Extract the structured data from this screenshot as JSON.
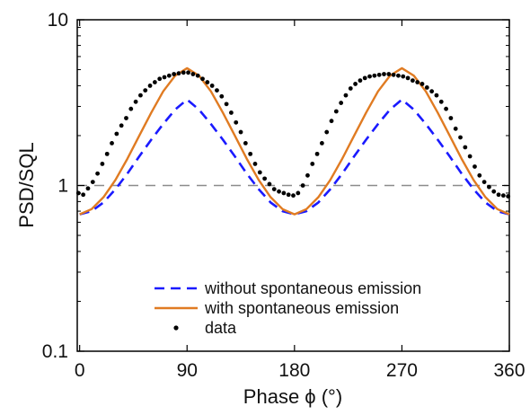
{
  "chart_data": {
    "type": "line",
    "xlabel": "Phase ϕ (°)",
    "ylabel": "PSD/SQL",
    "xlim": [
      -2,
      360
    ],
    "ylim": [
      0.1,
      10
    ],
    "yscale": "log",
    "xticks": [
      0,
      90,
      180,
      270,
      360
    ],
    "yticks": [
      0.1,
      1,
      10
    ],
    "ytick_labels": [
      "0.1",
      "1",
      "10"
    ],
    "grid": false,
    "reference_line": {
      "y": 1,
      "style": "dashed",
      "color": "#8c8c8c"
    },
    "legend": {
      "placement": "bottom-right",
      "entries": [
        {
          "label": "without spontaneous emission",
          "series_index": 0
        },
        {
          "label": "with spontaneous emission",
          "series_index": 1
        },
        {
          "label": "data",
          "series_index": 2
        }
      ]
    },
    "series": [
      {
        "name": "without spontaneous emission",
        "style": "dashed",
        "color": "#1a1aff",
        "x": [
          0,
          10,
          20,
          30,
          40,
          50,
          60,
          70,
          80,
          90,
          100,
          110,
          120,
          130,
          140,
          150,
          160,
          170,
          180,
          190,
          200,
          210,
          220,
          230,
          240,
          250,
          260,
          270,
          280,
          290,
          300,
          310,
          320,
          330,
          340,
          350,
          360
        ],
        "values": [
          0.67,
          0.7,
          0.79,
          0.95,
          1.18,
          1.5,
          1.89,
          2.35,
          2.87,
          3.3,
          2.87,
          2.35,
          1.89,
          1.5,
          1.18,
          0.95,
          0.79,
          0.7,
          0.67,
          0.7,
          0.79,
          0.95,
          1.18,
          1.5,
          1.89,
          2.35,
          2.87,
          3.3,
          2.87,
          2.35,
          1.89,
          1.5,
          1.18,
          0.95,
          0.79,
          0.7,
          0.67
        ]
      },
      {
        "name": "with spontaneous emission",
        "style": "solid",
        "color": "#e07b22",
        "x": [
          0,
          10,
          20,
          30,
          40,
          50,
          60,
          70,
          80,
          90,
          100,
          110,
          120,
          130,
          140,
          150,
          160,
          170,
          180,
          190,
          200,
          210,
          220,
          230,
          240,
          250,
          260,
          270,
          280,
          290,
          300,
          310,
          320,
          330,
          340,
          350,
          360
        ],
        "values": [
          0.67,
          0.72,
          0.85,
          1.08,
          1.45,
          2.0,
          2.75,
          3.7,
          4.6,
          5.1,
          4.6,
          3.7,
          2.75,
          2.0,
          1.45,
          1.08,
          0.85,
          0.72,
          0.67,
          0.72,
          0.85,
          1.08,
          1.45,
          2.0,
          2.75,
          3.7,
          4.6,
          5.1,
          4.6,
          3.7,
          2.75,
          2.0,
          1.45,
          1.08,
          0.85,
          0.72,
          0.67
        ]
      },
      {
        "name": "data",
        "style": "markers",
        "color": "#000000",
        "x": [
          -1,
          3,
          7,
          11,
          15,
          19,
          23,
          27,
          31,
          35,
          39,
          43,
          47,
          51,
          55,
          59,
          63,
          67,
          71,
          75,
          79,
          83,
          87,
          91,
          95,
          99,
          103,
          107,
          111,
          115,
          119,
          123,
          127,
          131,
          135,
          139,
          143,
          147,
          151,
          155,
          159,
          163,
          167,
          171,
          175,
          179,
          183,
          187,
          191,
          195,
          199,
          203,
          207,
          211,
          215,
          219,
          223,
          227,
          231,
          235,
          239,
          243,
          247,
          251,
          255,
          259,
          263,
          267,
          271,
          275,
          279,
          283,
          287,
          291,
          295,
          299,
          303,
          307,
          311,
          315,
          319,
          323,
          327,
          331,
          335,
          339,
          343,
          347,
          351,
          355,
          359
        ],
        "values": [
          0.9,
          0.88,
          0.96,
          1.05,
          1.18,
          1.35,
          1.55,
          1.8,
          2.05,
          2.3,
          2.55,
          2.9,
          3.2,
          3.5,
          3.75,
          4.0,
          4.2,
          4.4,
          4.5,
          4.6,
          4.7,
          4.75,
          4.8,
          4.8,
          4.7,
          4.6,
          4.4,
          4.2,
          4.0,
          3.75,
          3.45,
          3.1,
          2.75,
          2.4,
          2.1,
          1.8,
          1.55,
          1.35,
          1.2,
          1.1,
          1.02,
          0.95,
          0.92,
          0.9,
          0.88,
          0.87,
          0.9,
          1.0,
          1.15,
          1.35,
          1.55,
          1.8,
          2.1,
          2.45,
          2.8,
          3.15,
          3.5,
          3.85,
          4.1,
          4.3,
          4.45,
          4.55,
          4.6,
          4.65,
          4.7,
          4.7,
          4.65,
          4.6,
          4.55,
          4.45,
          4.3,
          4.2,
          4.1,
          3.9,
          3.7,
          3.5,
          3.2,
          2.9,
          2.55,
          2.2,
          1.95,
          1.7,
          1.5,
          1.3,
          1.15,
          1.05,
          0.98,
          0.92,
          0.88,
          0.87,
          0.86
        ]
      }
    ]
  }
}
